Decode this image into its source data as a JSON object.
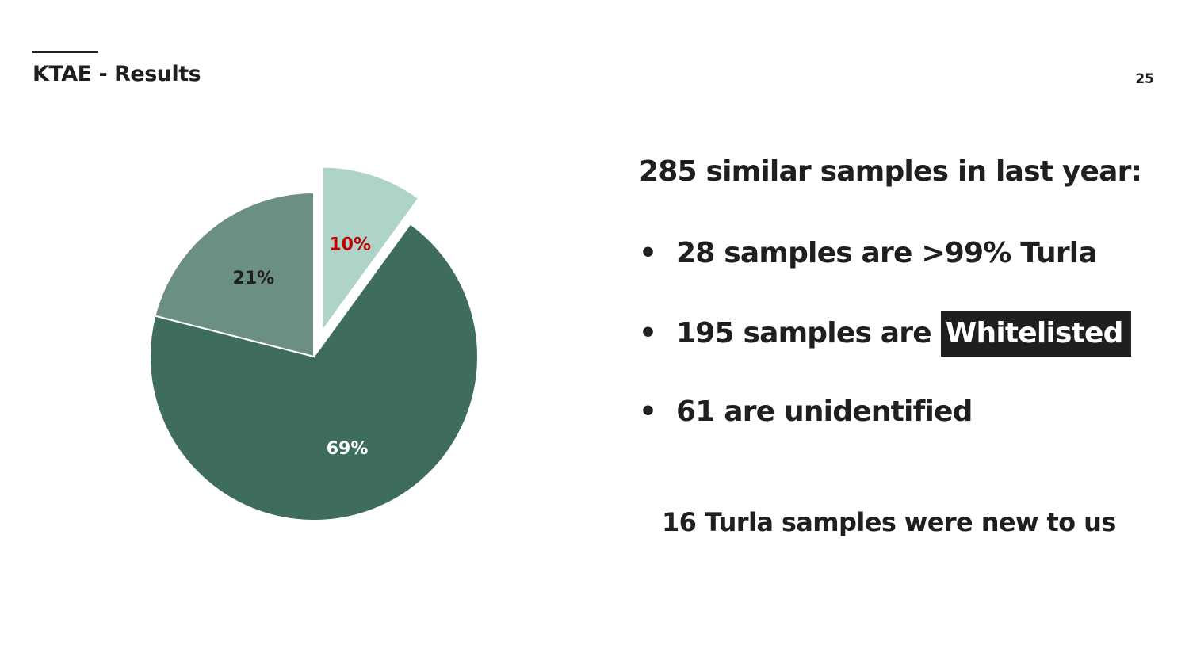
{
  "slide": {
    "title": "KTAE - Results",
    "page_number": "25"
  },
  "summary": {
    "headline": "285 similar samples in last year:",
    "bullets": [
      {
        "prefix": "28 samples are >99% Turla",
        "highlight": ""
      },
      {
        "prefix": "195 samples are ",
        "highlight": "Whitelisted"
      },
      {
        "prefix": "61 are unidentified",
        "highlight": ""
      }
    ],
    "bullet_symbol": "•",
    "footnote": "16 Turla samples were new to us"
  },
  "chart_data": {
    "type": "pie",
    "title": "",
    "slices": [
      {
        "label": "10%",
        "value": 10,
        "color": "#aed3c8",
        "label_color": "#c00000",
        "exploded": true
      },
      {
        "label": "69%",
        "value": 69,
        "color": "#3e6d5f",
        "label_color": "#ffffff",
        "exploded": false
      },
      {
        "label": "21%",
        "value": 21,
        "color": "#6b8f82",
        "label_color": "#1f1f1f",
        "exploded": false
      }
    ],
    "start": "12 o'clock",
    "direction": "clockwise",
    "legend": "none"
  },
  "colors": {
    "text": "#1f1f1f",
    "highlight_bg": "#1f1f1f",
    "highlight_text": "#ffffff",
    "background": "#ffffff"
  }
}
